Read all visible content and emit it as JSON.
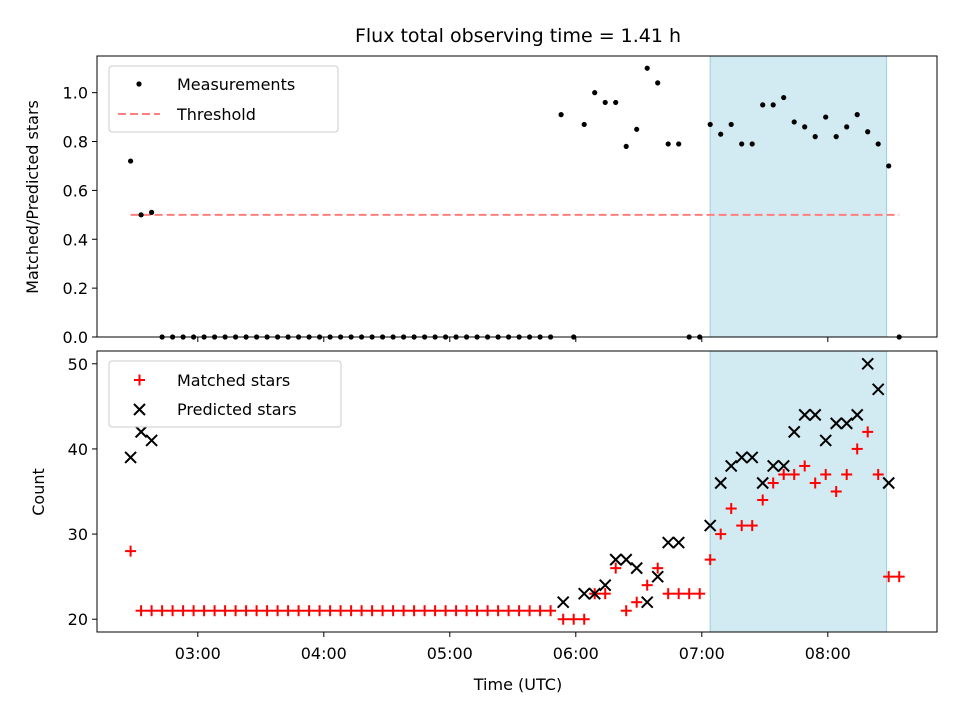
{
  "chart_data": [
    {
      "type": "scatter",
      "title": "Flux total observing time = 1.41 h",
      "xlabel": "",
      "ylabel": "Matched/Predicted stars",
      "xlim": [
        "02:12",
        "08:52"
      ],
      "ylim": [
        0,
        1.15
      ],
      "yticks": [
        "0.0",
        "0.2",
        "0.4",
        "0.6",
        "0.8",
        "1.0"
      ],
      "grid": false,
      "legend_placement": "top-left",
      "shaded_interval": {
        "start": "07:04",
        "end": "08:28",
        "color": "#add8e6"
      },
      "series": [
        {
          "name": "Measurements",
          "marker": "dot",
          "color": "#000000",
          "x": [
            "02:28",
            "02:33",
            "02:38",
            "02:43",
            "02:48",
            "02:53",
            "02:58",
            "03:03",
            "03:08",
            "03:13",
            "03:18",
            "03:23",
            "03:28",
            "03:33",
            "03:38",
            "03:43",
            "03:48",
            "03:53",
            "03:58",
            "04:03",
            "04:08",
            "04:13",
            "04:18",
            "04:23",
            "04:28",
            "04:33",
            "04:38",
            "04:43",
            "04:48",
            "04:53",
            "04:58",
            "05:03",
            "05:08",
            "05:13",
            "05:18",
            "05:23",
            "05:28",
            "05:33",
            "05:38",
            "05:43",
            "05:48",
            "05:53",
            "05:59",
            "06:04",
            "06:09",
            "06:14",
            "06:19",
            "06:24",
            "06:29",
            "06:34",
            "06:39",
            "06:44",
            "06:49",
            "06:54",
            "06:59",
            "07:04",
            "07:09",
            "07:14",
            "07:19",
            "07:24",
            "07:29",
            "07:34",
            "07:39",
            "07:44",
            "07:49",
            "07:54",
            "07:59",
            "08:04",
            "08:09",
            "08:14",
            "08:19",
            "08:24",
            "08:29",
            "08:34"
          ],
          "y": [
            0.72,
            0.5,
            0.51,
            0,
            0,
            0,
            0,
            0,
            0,
            0,
            0,
            0,
            0,
            0,
            0,
            0,
            0,
            0,
            0,
            0,
            0,
            0,
            0,
            0,
            0,
            0,
            0,
            0,
            0,
            0,
            0,
            0,
            0,
            0,
            0,
            0,
            0,
            0,
            0,
            0,
            0,
            0.91,
            0,
            0.87,
            1.0,
            0.96,
            0.96,
            0.78,
            0.85,
            1.1,
            1.04,
            0.79,
            0.79,
            0,
            0,
            0.87,
            0.83,
            0.87,
            0.79,
            0.79,
            0.95,
            0.95,
            0.98,
            0.88,
            0.86,
            0.82,
            0.9,
            0.82,
            0.86,
            0.91,
            0.84,
            0.79,
            0.7,
            0
          ]
        },
        {
          "name": "Threshold",
          "marker": "dashed-line",
          "color": "#ff7f7f",
          "x": [
            "02:28",
            "08:34"
          ],
          "y": [
            0.5,
            0.5
          ]
        }
      ]
    },
    {
      "type": "scatter",
      "title": "",
      "xlabel": "Time (UTC)",
      "ylabel": "Count",
      "xlim": [
        "02:12",
        "08:52"
      ],
      "ylim": [
        18.5,
        51.5
      ],
      "yticks": [
        "20",
        "30",
        "40",
        "50"
      ],
      "xticks": [
        "03:00",
        "04:00",
        "05:00",
        "06:00",
        "07:00",
        "08:00"
      ],
      "grid": false,
      "legend_placement": "top-left",
      "shaded_interval": {
        "start": "07:04",
        "end": "08:28",
        "color": "#add8e6"
      },
      "series": [
        {
          "name": "Matched stars",
          "marker": "plus",
          "color": "#ff0000",
          "x": [
            "02:28",
            "02:33",
            "02:38",
            "02:43",
            "02:48",
            "02:53",
            "02:58",
            "03:03",
            "03:08",
            "03:13",
            "03:18",
            "03:23",
            "03:28",
            "03:33",
            "03:38",
            "03:43",
            "03:48",
            "03:53",
            "03:58",
            "04:03",
            "04:08",
            "04:13",
            "04:18",
            "04:23",
            "04:28",
            "04:33",
            "04:38",
            "04:43",
            "04:48",
            "04:53",
            "04:58",
            "05:03",
            "05:08",
            "05:13",
            "05:18",
            "05:23",
            "05:28",
            "05:33",
            "05:38",
            "05:43",
            "05:48",
            "05:54",
            "05:59",
            "06:04",
            "06:09",
            "06:14",
            "06:19",
            "06:24",
            "06:29",
            "06:34",
            "06:39",
            "06:44",
            "06:49",
            "06:54",
            "06:59",
            "07:04",
            "07:09",
            "07:14",
            "07:19",
            "07:24",
            "07:29",
            "07:34",
            "07:39",
            "07:44",
            "07:49",
            "07:54",
            "07:59",
            "08:04",
            "08:09",
            "08:14",
            "08:19",
            "08:24",
            "08:29",
            "08:34"
          ],
          "y": [
            28,
            21,
            21,
            21,
            21,
            21,
            21,
            21,
            21,
            21,
            21,
            21,
            21,
            21,
            21,
            21,
            21,
            21,
            21,
            21,
            21,
            21,
            21,
            21,
            21,
            21,
            21,
            21,
            21,
            21,
            21,
            21,
            21,
            21,
            21,
            21,
            21,
            21,
            21,
            21,
            21,
            20,
            20,
            20,
            23,
            23,
            26,
            21,
            22,
            24,
            26,
            23,
            23,
            23,
            23,
            27,
            30,
            33,
            31,
            31,
            34,
            36,
            37,
            37,
            38,
            36,
            37,
            35,
            37,
            40,
            42,
            37,
            25,
            25
          ]
        },
        {
          "name": "Predicted stars",
          "marker": "x",
          "color": "#000000",
          "x": [
            "02:28",
            "02:33",
            "02:38",
            "05:54",
            "06:04",
            "06:09",
            "06:14",
            "06:19",
            "06:24",
            "06:29",
            "06:34",
            "06:39",
            "06:44",
            "06:49",
            "07:04",
            "07:09",
            "07:14",
            "07:19",
            "07:24",
            "07:29",
            "07:34",
            "07:39",
            "07:44",
            "07:49",
            "07:54",
            "07:59",
            "08:04",
            "08:09",
            "08:14",
            "08:19",
            "08:24",
            "08:29"
          ],
          "y": [
            39,
            42,
            41,
            22,
            23,
            23,
            24,
            27,
            27,
            26,
            22,
            25,
            29,
            29,
            31,
            36,
            38,
            39,
            39,
            36,
            38,
            38,
            42,
            44,
            44,
            41,
            43,
            43,
            44,
            50,
            47,
            36
          ]
        }
      ]
    }
  ]
}
